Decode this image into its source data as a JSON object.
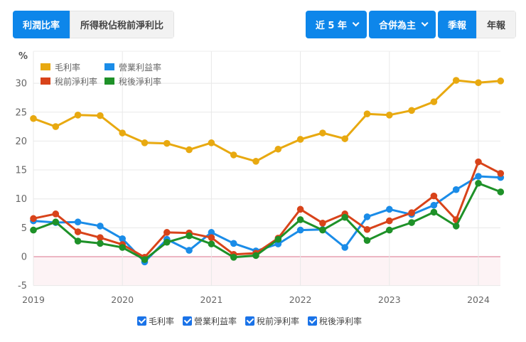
{
  "tabs": {
    "profit_ratio": "利潤比率",
    "tax_ratio": "所得稅佔稅前淨利比"
  },
  "controls": {
    "period": "近 5 年",
    "basis": "合併為主",
    "quarterly": "季報",
    "annual": "年報"
  },
  "chart_data": {
    "type": "line",
    "unit": "%",
    "ylabel": "%",
    "xlabel": "",
    "ylim": [
      -5,
      30
    ],
    "yticks": [
      -5,
      0,
      5,
      10,
      15,
      20,
      25,
      30
    ],
    "xticks": [
      "2019",
      "2020",
      "2021",
      "2022",
      "2023",
      "2024"
    ],
    "x": [
      "2019Q1",
      "2019Q2",
      "2019Q3",
      "2019Q4",
      "2020Q1",
      "2020Q2",
      "2020Q3",
      "2020Q4",
      "2021Q1",
      "2021Q2",
      "2021Q3",
      "2021Q4",
      "2022Q1",
      "2022Q2",
      "2022Q3",
      "2022Q4",
      "2023Q1",
      "2023Q2",
      "2023Q3",
      "2023Q4",
      "2024Q1",
      "2024Q2"
    ],
    "grid": true,
    "legend_position": "top-left",
    "negative_region_shaded": true,
    "series": [
      {
        "name": "毛利率",
        "color": "#e8a910",
        "values": [
          23.9,
          22.5,
          24.5,
          24.4,
          21.4,
          19.7,
          19.6,
          18.5,
          19.7,
          17.6,
          16.5,
          18.6,
          20.3,
          21.4,
          20.4,
          24.7,
          24.5,
          25.3,
          26.8,
          30.5,
          30.1,
          30.4
        ]
      },
      {
        "name": "營業利益率",
        "color": "#1a8ce8",
        "values": [
          6.2,
          5.9,
          6.0,
          5.3,
          3.1,
          -0.9,
          3.0,
          1.1,
          4.2,
          2.3,
          1.0,
          2.2,
          4.6,
          4.7,
          1.6,
          6.9,
          8.2,
          7.3,
          8.9,
          11.6,
          13.9,
          13.7
        ]
      },
      {
        "name": "稅前淨利率",
        "color": "#d8431a",
        "values": [
          6.6,
          7.4,
          4.3,
          3.3,
          2.1,
          -0.1,
          4.2,
          4.1,
          3.3,
          0.4,
          0.6,
          3.2,
          8.2,
          5.8,
          7.4,
          4.7,
          6.2,
          7.6,
          10.5,
          6.4,
          16.4,
          14.4
        ]
      },
      {
        "name": "稅後淨利率",
        "color": "#1e9128",
        "values": [
          4.6,
          6.0,
          2.7,
          2.3,
          1.6,
          -0.5,
          2.5,
          3.6,
          2.2,
          -0.1,
          0.2,
          3.0,
          6.4,
          4.6,
          6.8,
          2.8,
          4.6,
          5.9,
          7.7,
          5.3,
          12.7,
          11.2
        ]
      }
    ]
  },
  "legend_checkboxes": [
    {
      "label": "毛利率",
      "checked": true
    },
    {
      "label": "營業利益率",
      "checked": true
    },
    {
      "label": "稅前淨利率",
      "checked": true
    },
    {
      "label": "稅後淨利率",
      "checked": true
    }
  ]
}
